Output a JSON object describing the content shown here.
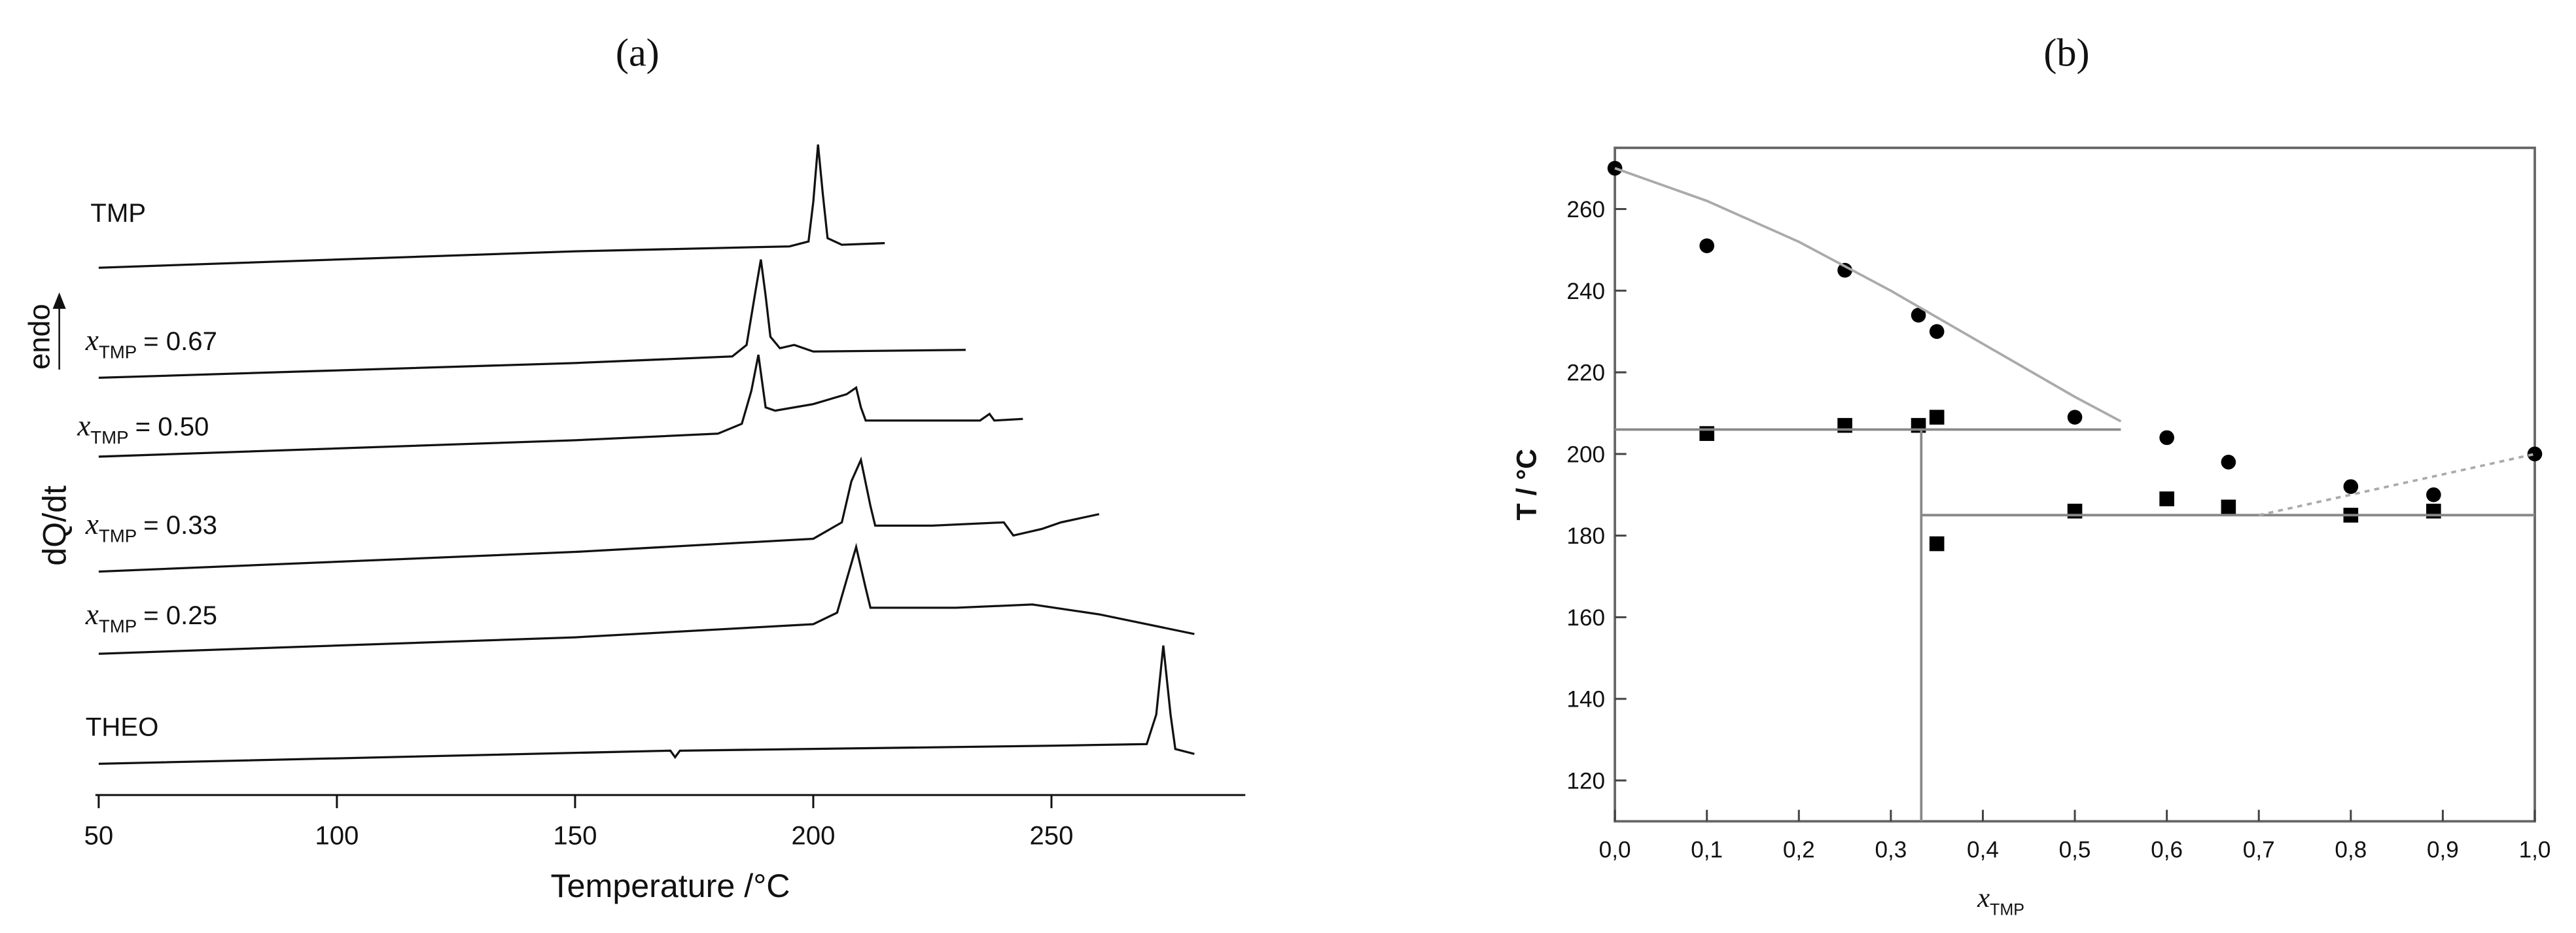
{
  "chart_data": [
    {
      "type": "line",
      "title": "(a)",
      "xlabel": "Temperature /°C",
      "ylabel": "dQ/dt",
      "annotation": "endo",
      "xlim": [
        50,
        290
      ],
      "xticks": [
        50,
        100,
        150,
        200,
        250
      ],
      "series": [
        {
          "name": "TMP",
          "color": "#111111",
          "x": [
            50,
            150,
            195,
            199,
            200,
            201,
            202,
            203,
            206,
            215
          ],
          "values": [
            0,
            10,
            13,
            16,
            40,
            75,
            45,
            18,
            14,
            15
          ]
        },
        {
          "name": "= 0.67",
          "symbol": "x",
          "subscript": "TMP",
          "color": "#111111",
          "x": [
            50,
            150,
            183,
            186,
            188,
            189,
            190,
            191,
            193,
            196,
            200,
            232
          ],
          "values": [
            0,
            9,
            13,
            20,
            55,
            72,
            50,
            25,
            18,
            20,
            16,
            17
          ]
        },
        {
          "name": "= 0.50",
          "symbol": "x",
          "subscript": "TMP",
          "color": "#111111",
          "x": [
            50,
            150,
            180,
            185,
            187,
            188.5,
            190,
            192,
            200,
            207,
            209,
            210,
            211,
            220,
            235,
            237,
            238,
            244
          ],
          "values": [
            0,
            10,
            14,
            20,
            40,
            62,
            30,
            28,
            32,
            38,
            42,
            30,
            22,
            22,
            22,
            26,
            22,
            23
          ]
        },
        {
          "name": "= 0.33",
          "symbol": "x",
          "subscript": "TMP",
          "color": "#111111",
          "x": [
            50,
            150,
            200,
            206,
            208,
            210,
            212,
            213,
            225,
            240,
            242,
            245,
            248,
            252,
            260
          ],
          "values": [
            0,
            12,
            20,
            30,
            55,
            68,
            40,
            28,
            28,
            30,
            22,
            24,
            26,
            30,
            35
          ]
        },
        {
          "name": "= 0.25",
          "symbol": "x",
          "subscript": "TMP",
          "color": "#111111",
          "x": [
            50,
            150,
            200,
            205,
            207,
            209,
            211,
            212,
            230,
            246,
            260,
            280
          ],
          "values": [
            0,
            10,
            18,
            25,
            45,
            65,
            40,
            28,
            28,
            30,
            24,
            12
          ]
        },
        {
          "name": "THEO",
          "color": "#111111",
          "x": [
            50,
            170,
            171,
            172,
            250,
            270,
            272,
            273.5,
            275,
            276,
            280
          ],
          "values": [
            0,
            8,
            4,
            8,
            11,
            12,
            30,
            72,
            30,
            9,
            6
          ]
        }
      ]
    },
    {
      "type": "scatter",
      "title": "(b)",
      "ylabel": "T / °C",
      "xlabel": "x",
      "xlabel_subscript": "TMP",
      "xlim": [
        0,
        1
      ],
      "ylim": [
        110,
        275
      ],
      "xticks": [
        {
          "value": 0,
          "label": "0,0"
        },
        {
          "value": 0.1,
          "label": "0,1"
        },
        {
          "value": 0.2,
          "label": "0,2"
        },
        {
          "value": 0.3,
          "label": "0,3"
        },
        {
          "value": 0.4,
          "label": "0,4"
        },
        {
          "value": 0.5,
          "label": "0,5"
        },
        {
          "value": 0.6,
          "label": "0,6"
        },
        {
          "value": 0.7,
          "label": "0,7"
        },
        {
          "value": 0.8,
          "label": "0,8"
        },
        {
          "value": 0.9,
          "label": "0,9"
        },
        {
          "value": 1,
          "label": "1,0"
        }
      ],
      "yticks": [
        120,
        140,
        160,
        180,
        200,
        220,
        240,
        260
      ],
      "series": [
        {
          "marker": "circle",
          "color": "#000000",
          "x": [
            0,
            0.1,
            0.25,
            0.33,
            0.35,
            0.5,
            0.6,
            0.667,
            0.8,
            0.89,
            1.0
          ],
          "values": [
            270,
            251,
            245,
            234,
            230,
            209,
            204,
            198,
            192,
            190,
            200
          ]
        },
        {
          "marker": "square",
          "color": "#000000",
          "x": [
            0.1,
            0.25,
            0.33,
            0.35,
            0.35,
            0.5,
            0.6,
            0.667,
            0.8,
            0.89
          ],
          "values": [
            205,
            207,
            207,
            209,
            178,
            186,
            189,
            187,
            185,
            186
          ]
        },
        {
          "marker": "line",
          "color": "#aaaaaa",
          "x": [
            0,
            0.1,
            0.2,
            0.3,
            0.4,
            0.5,
            0.55
          ],
          "values": [
            270,
            262,
            252,
            240,
            227,
            214,
            208
          ]
        },
        {
          "marker": "line",
          "color": "#888888",
          "x": [
            0,
            0.55
          ],
          "values": [
            206,
            206
          ]
        },
        {
          "marker": "line",
          "color": "#888888",
          "x": [
            0.333,
            0.333
          ],
          "values": [
            206,
            110
          ]
        },
        {
          "marker": "line",
          "color": "#888888",
          "x": [
            0.333,
            1.0
          ],
          "values": [
            185,
            185
          ]
        },
        {
          "marker": "dotted",
          "color": "#aaaaaa",
          "x": [
            0.7,
            1.0
          ],
          "values": [
            185,
            200
          ]
        }
      ]
    }
  ]
}
